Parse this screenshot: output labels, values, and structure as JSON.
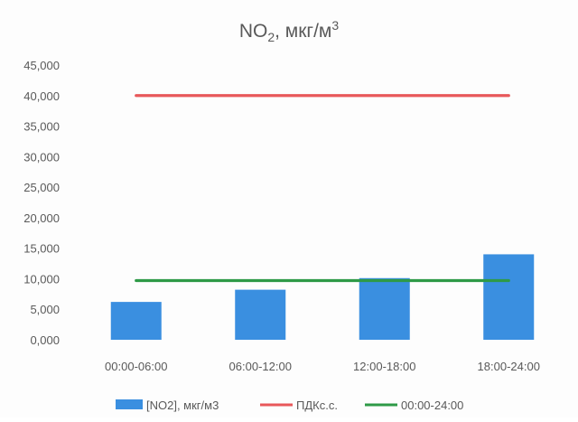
{
  "chart_data": {
    "type": "bar",
    "title": "NO",
    "title_subscript": "2",
    "title_unit": ", мкг/м",
    "title_superscript": "3",
    "categories": [
      "00:00-06:00",
      "06:00-12:00",
      "12:00-18:00",
      "18:00-24:00"
    ],
    "ylim": [
      0,
      45
    ],
    "ytick_values": [
      0,
      5,
      10,
      15,
      20,
      25,
      30,
      35,
      40,
      45
    ],
    "ytick_labels": [
      "0,000",
      "5,000",
      "10,000",
      "15,000",
      "20,000",
      "25,000",
      "30,000",
      "35,000",
      "40,000",
      "45,000"
    ],
    "grid": false,
    "legend_position": "bottom",
    "series": [
      {
        "name": "[NO2], мкг/м3",
        "kind": "bar",
        "color": "#3a8fe0",
        "values": [
          6.2,
          8.2,
          10.1,
          14.0
        ]
      },
      {
        "name": "ПДКс.с.",
        "kind": "line",
        "color": "#e8585a",
        "values": [
          40.0,
          40.0,
          40.0,
          40.0
        ]
      },
      {
        "name": "00:00-24:00",
        "kind": "line",
        "color": "#2e9a47",
        "values": [
          9.7,
          9.7,
          9.7,
          9.7
        ]
      }
    ]
  }
}
